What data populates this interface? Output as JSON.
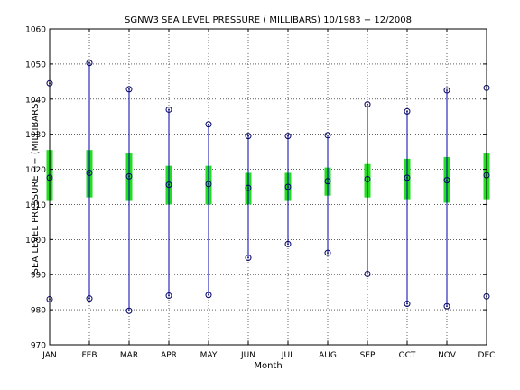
{
  "chart_data": {
    "type": "boxplot",
    "title": "SGNW3  SEA LEVEL PRESSURE ( MILLIBARS) 10/1983 − 12/2008",
    "xlabel": "Month",
    "ylabel": "SEA LEVEL PRESSURE −− (MILLIBARS)",
    "ylim": [
      970,
      1060
    ],
    "yticks": [
      970,
      980,
      990,
      1000,
      1010,
      1020,
      1030,
      1040,
      1050,
      1060
    ],
    "grid": true,
    "categories": [
      "JAN",
      "FEB",
      "MAR",
      "APR",
      "MAY",
      "JUN",
      "JUL",
      "AUG",
      "SEP",
      "OCT",
      "NOV",
      "DEC"
    ],
    "max": [
      1044.5,
      1050.3,
      1042.8,
      1037.0,
      1032.8,
      1029.5,
      1029.5,
      1029.7,
      1038.5,
      1036.5,
      1042.5,
      1043.2
    ],
    "min": [
      983.0,
      983.2,
      979.7,
      984.0,
      984.2,
      994.8,
      998.7,
      996.2,
      990.2,
      981.7,
      981.0,
      983.8
    ],
    "mean": [
      1017.6,
      1019.0,
      1018.0,
      1015.6,
      1015.8,
      1014.7,
      1015.0,
      1016.6,
      1017.2,
      1017.6,
      1016.9,
      1018.3
    ],
    "box_low": [
      1011.0,
      1012.0,
      1011.0,
      1010.0,
      1010.0,
      1010.0,
      1011.0,
      1012.5,
      1012.0,
      1011.5,
      1010.5,
      1011.5
    ],
    "box_high": [
      1025.5,
      1025.5,
      1024.5,
      1021.0,
      1021.0,
      1019.0,
      1019.0,
      1020.5,
      1021.5,
      1023.0,
      1023.5,
      1024.5
    ],
    "colors": {
      "whisker": "#0000aa",
      "box": "#22dd22",
      "marker": "#000066",
      "grid": "#000000"
    }
  }
}
